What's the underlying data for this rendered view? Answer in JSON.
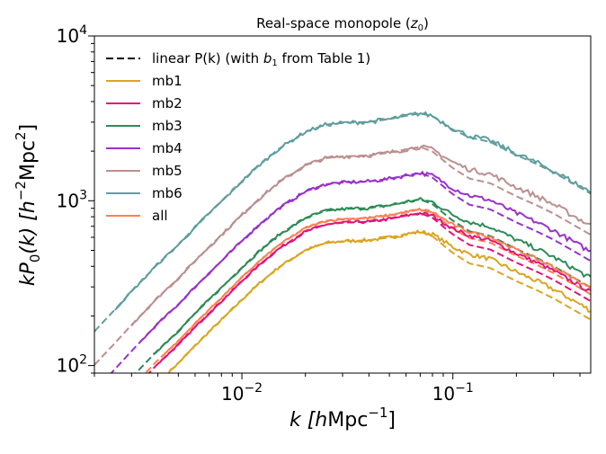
{
  "chart_data": {
    "type": "line",
    "title": "Real-space monopole (",
    "title_sub": "z",
    "title_sub_index": "0",
    "title_end": ")",
    "xlabel": {
      "main": "k [",
      "italic": "h",
      "rest": "Mpc",
      "sup": "−1",
      "end": "]"
    },
    "ylabel": {
      "main": "kP",
      "sub": "0",
      "paren": "(k) [",
      "italic": "h",
      "sup1": "−2",
      "rest": "Mpc",
      "sup2": "2",
      "end": "]"
    },
    "x_scale": "log",
    "y_scale": "log",
    "xlim": [
      0.002,
      0.45
    ],
    "ylim": [
      90,
      10000
    ],
    "x_ticks": [
      {
        "value": 0.01,
        "base": "10",
        "exp": "−2"
      },
      {
        "value": 0.1,
        "base": "10",
        "exp": "−1"
      }
    ],
    "y_ticks": [
      {
        "value": 100,
        "base": "10",
        "exp": "2"
      },
      {
        "value": 1000,
        "base": "10",
        "exp": "3"
      },
      {
        "value": 10000,
        "base": "10",
        "exp": "4"
      }
    ],
    "legend_position": "upper-left",
    "legend": [
      {
        "label": "linear P(k) (with ",
        "label_italic": "b",
        "label_sub": "1",
        "label_end": " from Table 1)",
        "color": "#000000",
        "style": "dashed"
      },
      {
        "label": "mb1",
        "color": "#DAA520",
        "style": "solid"
      },
      {
        "label": "mb2",
        "color": "#E0157A",
        "style": "solid"
      },
      {
        "label": "mb3",
        "color": "#2E8B57",
        "style": "solid"
      },
      {
        "label": "mb4",
        "color": "#9932CC",
        "style": "solid"
      },
      {
        "label": "mb5",
        "color": "#BC8F8F",
        "style": "solid"
      },
      {
        "label": "mb6",
        "color": "#5F9EA0",
        "style": "solid"
      },
      {
        "label": "all",
        "color": "#FF7F50",
        "style": "solid"
      }
    ],
    "base_shape": {
      "x": [
        0.002,
        0.0025,
        0.003,
        0.004,
        0.005,
        0.006,
        0.007,
        0.008,
        0.01,
        0.012,
        0.015,
        0.02,
        0.025,
        0.03,
        0.04,
        0.05,
        0.06,
        0.07,
        0.08,
        0.1,
        0.12,
        0.15,
        0.2,
        0.25,
        0.3,
        0.35,
        0.4,
        0.45
      ],
      "y": [
        140,
        190,
        245,
        360,
        470,
        600,
        730,
        860,
        1140,
        1420,
        1800,
        2280,
        2520,
        2580,
        2620,
        2720,
        2850,
        2950,
        2850,
        2380,
        2150,
        2020,
        1680,
        1480,
        1320,
        1180,
        1070,
        980
      ]
    },
    "series": [
      {
        "name": "mb1",
        "color": "#DAA520",
        "scale": 0.22,
        "kmin": 0.0045,
        "dash_ratio": 0.88,
        "noise": 0.035
      },
      {
        "name": "mb2",
        "color": "#E0157A",
        "scale": 0.285,
        "kmin": 0.004,
        "dash_ratio": 0.88,
        "noise": 0.03
      },
      {
        "name": "mb3",
        "color": "#2E8B57",
        "scale": 0.345,
        "kmin": 0.0038,
        "dash_ratio": 0.88,
        "noise": 0.035
      },
      {
        "name": "mb4",
        "color": "#9932CC",
        "scale": 0.5,
        "kmin": 0.0033,
        "dash_ratio": 0.88,
        "noise": 0.035
      },
      {
        "name": "mb5",
        "color": "#BC8F8F",
        "scale": 0.72,
        "kmin": 0.003,
        "dash_ratio": 0.88,
        "noise": 0.04
      },
      {
        "name": "mb6",
        "color": "#5F9EA0",
        "scale": 1.15,
        "kmin": 0.0025,
        "dash_ratio": 0.98,
        "noise": 0.04
      },
      {
        "name": "all",
        "color": "#FF7F50",
        "scale": 0.3,
        "kmin": 0.0042,
        "dash_ratio": 0.92,
        "noise": 0.025
      }
    ]
  }
}
